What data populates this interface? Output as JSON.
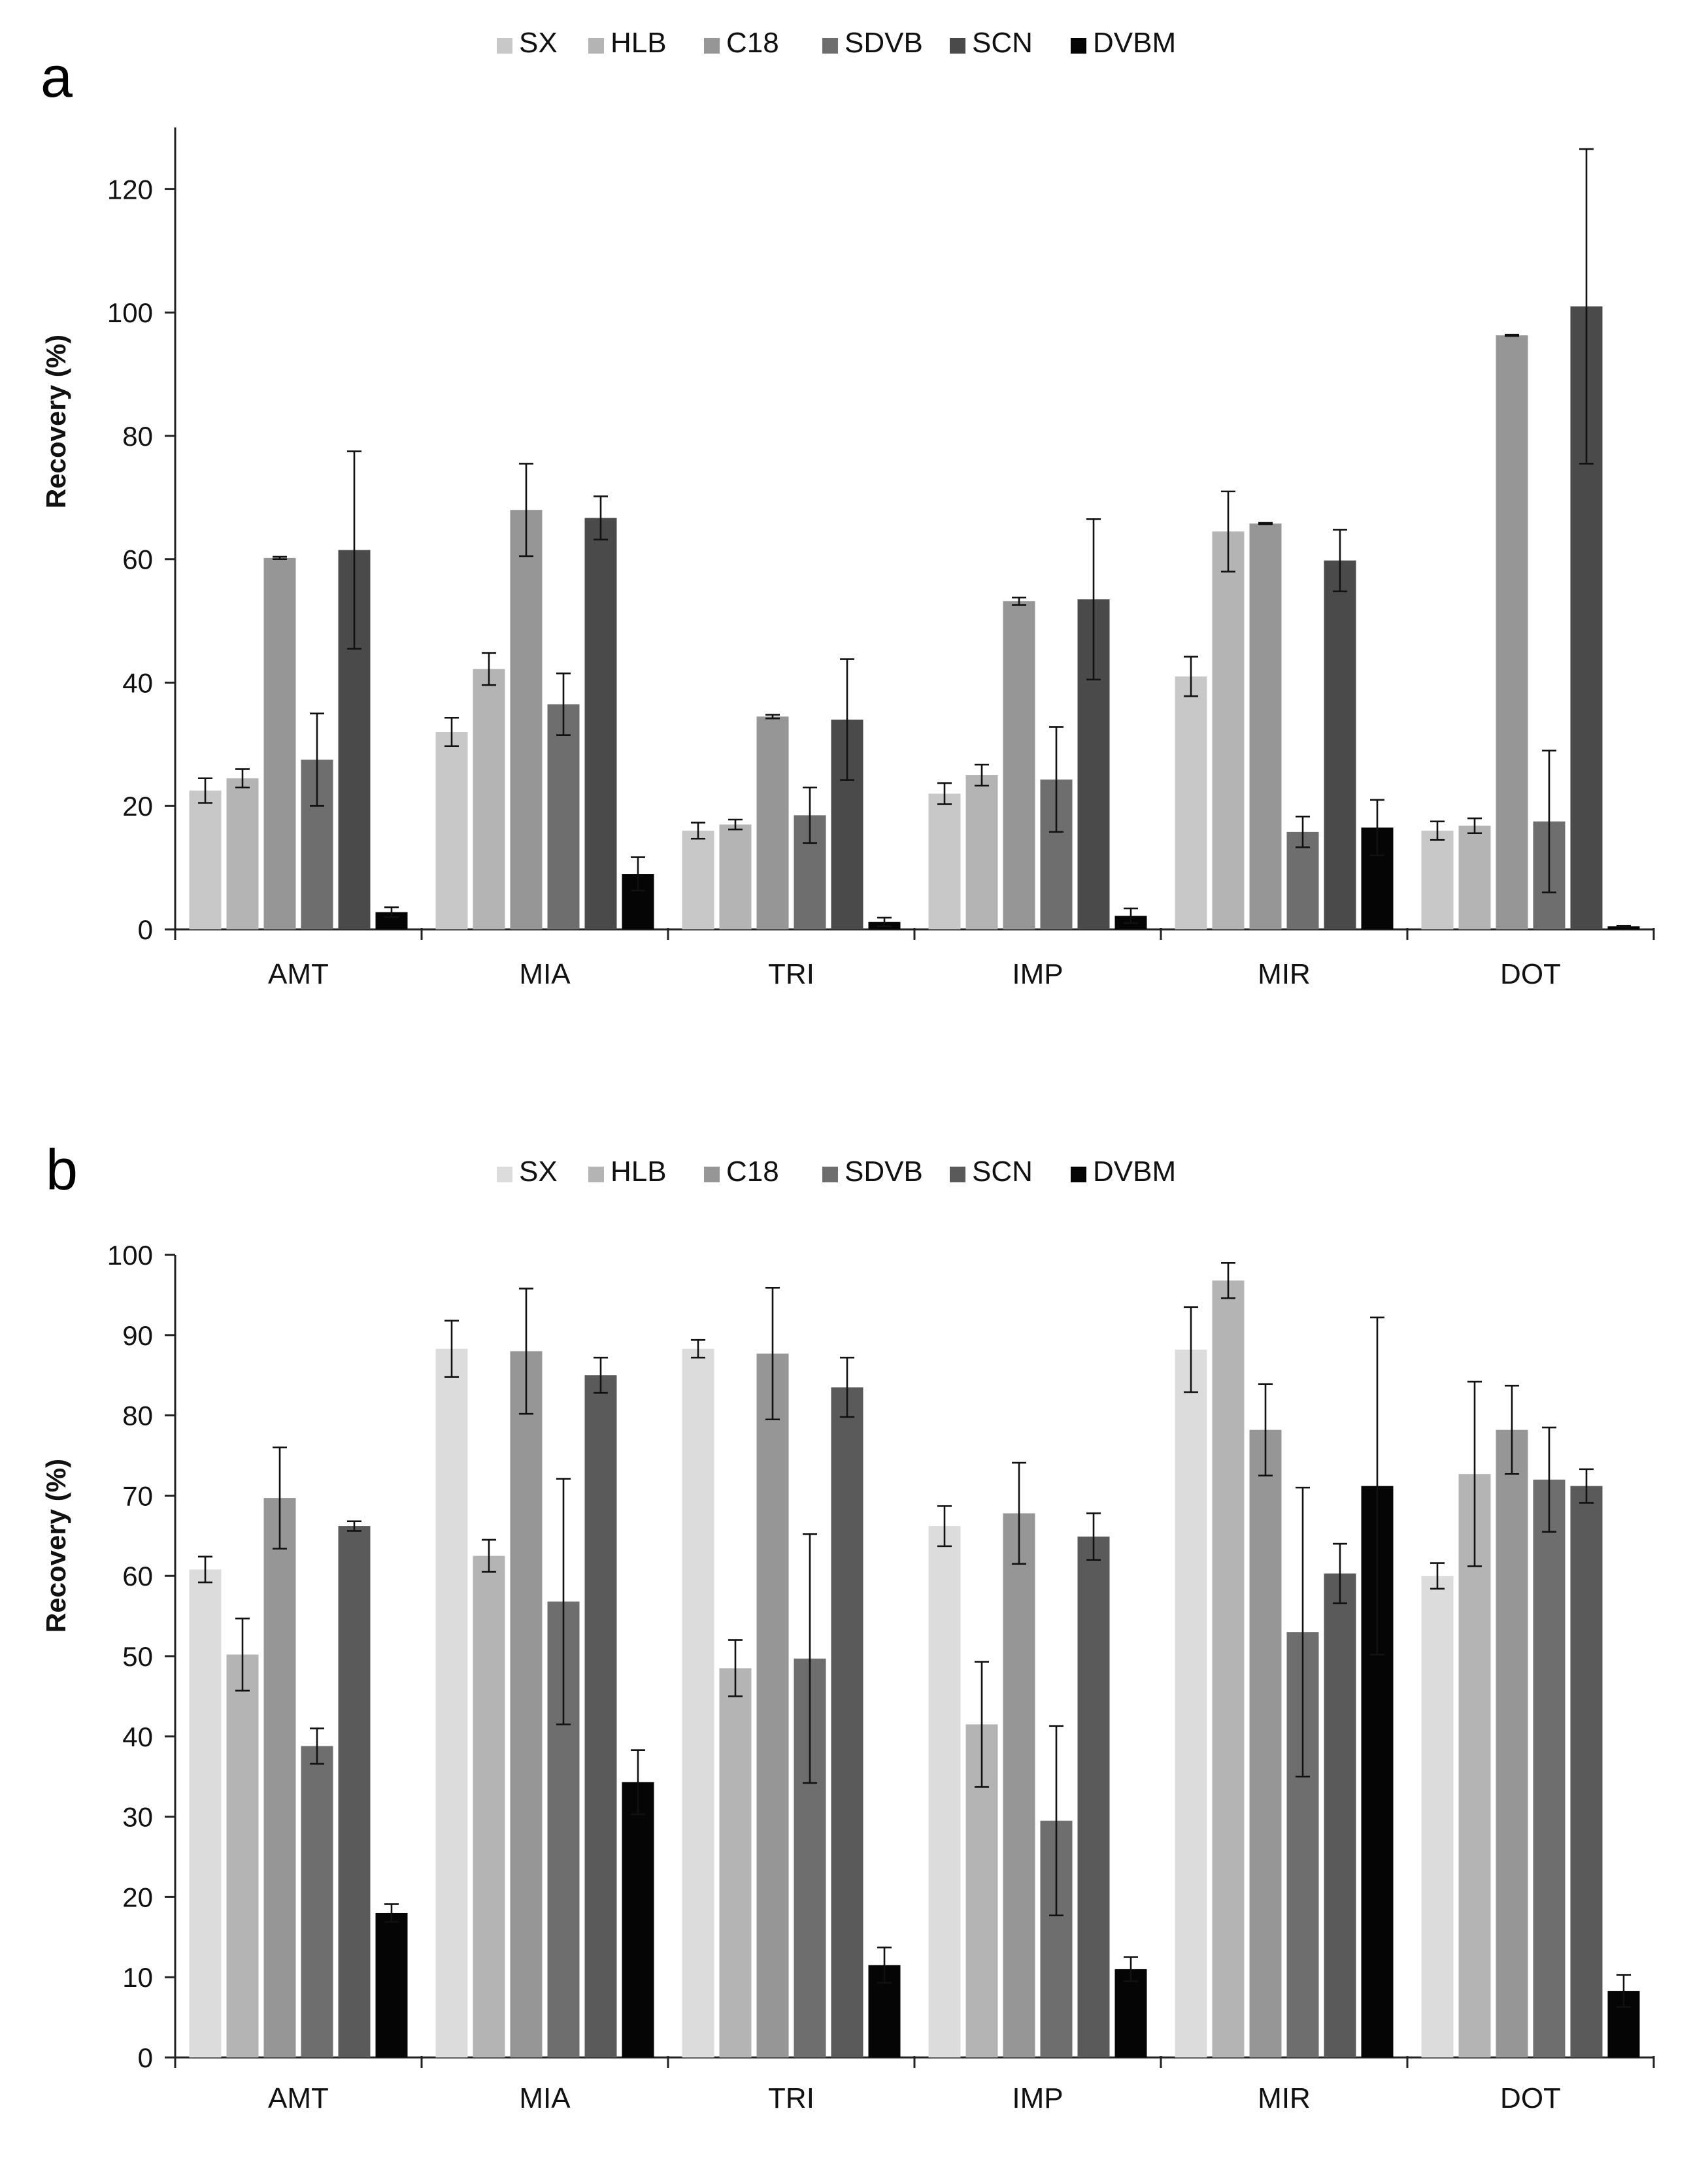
{
  "chart_data": [
    {
      "panel_label": "a",
      "type": "bar",
      "categories": [
        "AMT",
        "MIA",
        "TRI",
        "IMP",
        "MIR",
        "DOT"
      ],
      "ylabel": "Recovery (%)",
      "xlabel": "",
      "ylim": [
        0,
        130
      ],
      "yticks": [
        0,
        20,
        40,
        60,
        80,
        100,
        120
      ],
      "grid": false,
      "legend_position": "top-center",
      "series": [
        {
          "name": "SX",
          "color": "#c8c8c8",
          "values": [
            22.5,
            32,
            16,
            22,
            41,
            16
          ],
          "errors": [
            2,
            2.3,
            1.3,
            1.7,
            3.2,
            1.5
          ]
        },
        {
          "name": "HLB",
          "color": "#b4b4b4",
          "values": [
            24.5,
            42.2,
            17,
            25,
            64.5,
            16.8
          ],
          "errors": [
            1.5,
            2.6,
            0.8,
            1.7,
            6.5,
            1.2
          ]
        },
        {
          "name": "C18",
          "color": "#969696",
          "values": [
            60.2,
            68,
            34.5,
            53.2,
            65.8,
            96.3
          ],
          "errors": [
            0.2,
            7.5,
            0.3,
            0.6,
            0.1,
            0.1
          ]
        },
        {
          "name": "SDVB",
          "color": "#6e6e6e",
          "values": [
            27.5,
            36.5,
            18.5,
            24.3,
            15.8,
            17.5
          ],
          "errors": [
            7.5,
            5,
            4.5,
            8.5,
            2.5,
            11.5
          ]
        },
        {
          "name": "SCN",
          "color": "#4a4a4a",
          "values": [
            61.5,
            66.7,
            34,
            53.5,
            59.8,
            101
          ],
          "errors": [
            16,
            3.5,
            9.8,
            13,
            5,
            25.5
          ]
        },
        {
          "name": "DVBM",
          "color": "#050505",
          "values": [
            2.8,
            9,
            1.2,
            2.2,
            16.5,
            0.5
          ],
          "errors": [
            0.8,
            2.7,
            0.7,
            1.2,
            4.5,
            0.1
          ]
        }
      ]
    },
    {
      "panel_label": "b",
      "type": "bar",
      "categories": [
        "AMT",
        "MIA",
        "TRI",
        "IMP",
        "MIR",
        "DOT"
      ],
      "ylabel": "Recovery (%)",
      "xlabel": "",
      "ylim": [
        0,
        100
      ],
      "yticks": [
        0,
        10,
        20,
        30,
        40,
        50,
        60,
        70,
        80,
        90,
        100
      ],
      "grid": false,
      "legend_position": "top-center",
      "series": [
        {
          "name": "SX",
          "color": "#dcdcdc",
          "values": [
            60.8,
            88.3,
            88.3,
            66.2,
            88.2,
            60
          ],
          "errors": [
            1.6,
            3.5,
            1.1,
            2.5,
            5.3,
            1.6
          ]
        },
        {
          "name": "HLB",
          "color": "#b4b4b4",
          "values": [
            50.2,
            62.5,
            48.5,
            41.5,
            96.8,
            72.7
          ],
          "errors": [
            4.5,
            2,
            3.5,
            7.8,
            2.2,
            11.5
          ]
        },
        {
          "name": "C18",
          "color": "#969696",
          "values": [
            69.7,
            88,
            87.7,
            67.8,
            78.2,
            78.2
          ],
          "errors": [
            6.3,
            7.8,
            8.2,
            6.3,
            5.7,
            5.5
          ]
        },
        {
          "name": "SDVB",
          "color": "#6e6e6e",
          "values": [
            38.8,
            56.8,
            49.7,
            29.5,
            53,
            72
          ],
          "errors": [
            2.2,
            15.3,
            15.5,
            11.8,
            18,
            6.5
          ]
        },
        {
          "name": "SCN",
          "color": "#5a5a5a",
          "values": [
            66.2,
            85,
            83.5,
            64.9,
            60.3,
            71.2
          ],
          "errors": [
            0.6,
            2.2,
            3.7,
            2.9,
            3.7,
            2.1
          ]
        },
        {
          "name": "DVBM",
          "color": "#050505",
          "values": [
            18,
            34.3,
            11.5,
            11,
            71.2,
            8.3
          ],
          "errors": [
            1.1,
            4,
            2.2,
            1.5,
            21,
            2
          ]
        }
      ]
    }
  ]
}
